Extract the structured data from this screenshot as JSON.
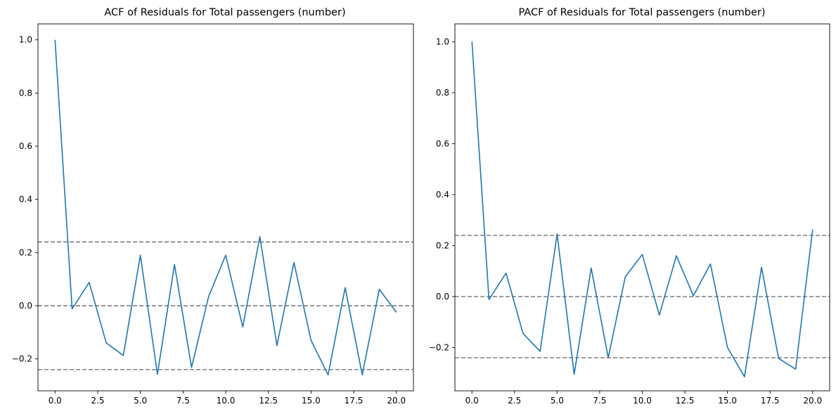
{
  "colors": {
    "series": "#1f77b4",
    "reference": "#808080"
  },
  "chart_data": [
    {
      "type": "line",
      "title": "ACF of Residuals for Total passengers (number)",
      "xlabel": "",
      "ylabel": "",
      "xlim": [
        -1,
        21
      ],
      "ylim": [
        -0.32,
        1.06
      ],
      "xticks": [
        0,
        2.5,
        5,
        7.5,
        10,
        12.5,
        15,
        17.5,
        20
      ],
      "xtick_labels": [
        "0.0",
        "2.5",
        "5.0",
        "7.5",
        "10.0",
        "12.5",
        "15.0",
        "17.5",
        "20.0"
      ],
      "yticks": [
        -0.2,
        0.0,
        0.2,
        0.4,
        0.6,
        0.8,
        1.0
      ],
      "ytick_labels": [
        "−0.2",
        "0.0",
        "0.2",
        "0.4",
        "0.6",
        "0.8",
        "1.0"
      ],
      "x": [
        0,
        1,
        2,
        3,
        4,
        5,
        6,
        7,
        8,
        9,
        10,
        11,
        12,
        13,
        14,
        15,
        16,
        17,
        18,
        19,
        20
      ],
      "values": [
        1.0,
        -0.012,
        0.088,
        -0.14,
        -0.187,
        0.19,
        -0.258,
        0.155,
        -0.232,
        0.035,
        0.19,
        -0.08,
        0.26,
        -0.15,
        0.163,
        -0.13,
        -0.26,
        0.068,
        -0.26,
        0.062,
        -0.025
      ],
      "reference_lines": [
        0.24,
        0.0,
        -0.24
      ],
      "grid": false
    },
    {
      "type": "line",
      "title": "PACF of Residuals for Total passengers (number)",
      "xlabel": "",
      "ylabel": "",
      "xlim": [
        -1,
        21
      ],
      "ylim": [
        -0.37,
        1.07
      ],
      "xticks": [
        0,
        2.5,
        5,
        7.5,
        10,
        12.5,
        15,
        17.5,
        20
      ],
      "xtick_labels": [
        "0.0",
        "2.5",
        "5.0",
        "7.5",
        "10.0",
        "12.5",
        "15.0",
        "17.5",
        "20.0"
      ],
      "yticks": [
        -0.2,
        0.0,
        0.2,
        0.4,
        0.6,
        0.8,
        1.0
      ],
      "ytick_labels": [
        "−0.2",
        "0.0",
        "0.2",
        "0.4",
        "0.6",
        "0.8",
        "1.0"
      ],
      "x": [
        0,
        1,
        2,
        3,
        4,
        5,
        6,
        7,
        8,
        9,
        10,
        11,
        12,
        13,
        14,
        15,
        16,
        17,
        18,
        19,
        20
      ],
      "values": [
        1.0,
        -0.012,
        0.092,
        -0.145,
        -0.215,
        0.245,
        -0.305,
        0.112,
        -0.24,
        0.077,
        0.165,
        -0.073,
        0.16,
        0.003,
        0.128,
        -0.2,
        -0.315,
        0.115,
        -0.243,
        -0.285,
        0.263
      ],
      "reference_lines": [
        0.24,
        0.0,
        -0.24
      ],
      "grid": false
    }
  ]
}
